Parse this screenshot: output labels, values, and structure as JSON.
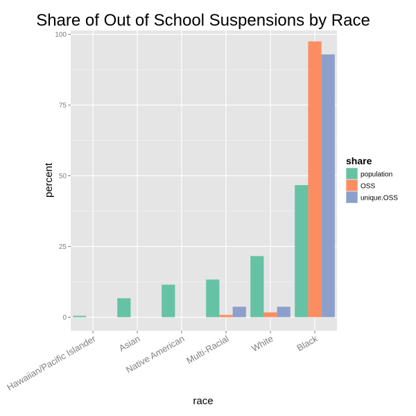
{
  "chart_data": {
    "type": "bar",
    "title": "Share of Out of School Suspensions by Race",
    "xlabel": "race",
    "ylabel": "percent",
    "categories": [
      "Hawaiian/Pacific Islander",
      "Asian",
      "Native American",
      "Multi-Racial",
      "White",
      "Black"
    ],
    "series": [
      {
        "name": "population",
        "color": "#66c2a5",
        "values": [
          0.5,
          6.7,
          11.5,
          13.3,
          21.6,
          46.7
        ]
      },
      {
        "name": "OSS",
        "color": "#fc8d62",
        "values": [
          0,
          0,
          0,
          0.8,
          1.7,
          97.5
        ]
      },
      {
        "name": "unique.OSS",
        "color": "#8da0cb",
        "values": [
          0,
          0,
          0,
          3.7,
          3.7,
          92.9
        ]
      }
    ],
    "ylim": [
      0,
      100
    ],
    "yticks": [
      0,
      25,
      50,
      75,
      100
    ],
    "legend": {
      "title": "share",
      "position": "right"
    },
    "grid": true,
    "panel_background": "#e5e5e5",
    "grid_color": "#ffffff"
  }
}
